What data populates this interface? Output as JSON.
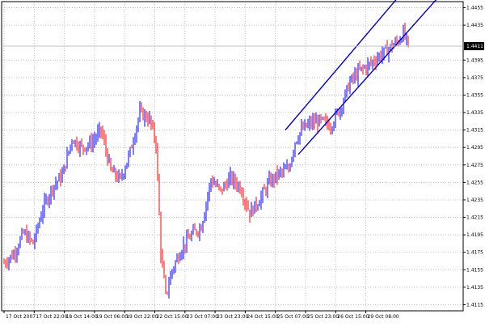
{
  "chart_data": {
    "type": "candlestick",
    "title": "",
    "xlabel": "",
    "ylabel": "",
    "grid": true,
    "x_tick_labels": [
      "17 Oct 2007",
      "17 Oct 22:00",
      "18 Oct 14:00",
      "19 Oct 06:00",
      "19 Oct 22:00",
      "22 Oct 15:00",
      "23 Oct 07:00",
      "23 Oct 23:00",
      "24 Oct 15:00",
      "25 Oct 07:00",
      "25 Oct 23:00",
      "26 Oct 15:00",
      "29 Oct 08:00"
    ],
    "y_ticks": [
      "1.4455",
      "1.4435",
      "1.4395",
      "1.4375",
      "1.4355",
      "1.4335",
      "1.4315",
      "1.4295",
      "1.4275",
      "1.4255",
      "1.4235",
      "1.4215",
      "1.4195",
      "1.4175",
      "1.4155",
      "1.4135",
      "1.4115"
    ],
    "ylim": [
      1.4108,
      1.4462
    ],
    "current_price": "1.4411",
    "colors": {
      "background": "#ffffff",
      "grid": "#c0c0c0",
      "bull_bar": "#0000ff",
      "bear_bar": "#ff0000",
      "channel_line": "#0000cd",
      "price_label_bg": "#000000",
      "axis": "#000000"
    },
    "channel": {
      "upper": {
        "start_bar": 174,
        "start_price": 1.4315,
        "end_bar": 247,
        "end_price": 1.4474
      },
      "lower": {
        "start_bar": 182,
        "start_price": 1.4287,
        "end_bar": 272,
        "end_price": 1.4474
      }
    },
    "close_anchors": [
      [
        0,
        1.4163
      ],
      [
        6,
        1.4173
      ],
      [
        12,
        1.4197
      ],
      [
        18,
        1.4185
      ],
      [
        24,
        1.4225
      ],
      [
        30,
        1.425
      ],
      [
        36,
        1.4263
      ],
      [
        42,
        1.4305
      ],
      [
        48,
        1.4295
      ],
      [
        54,
        1.43
      ],
      [
        60,
        1.4315
      ],
      [
        66,
        1.4268
      ],
      [
        72,
        1.4258
      ],
      [
        78,
        1.429
      ],
      [
        84,
        1.4335
      ],
      [
        90,
        1.4327
      ],
      [
        94,
        1.43
      ],
      [
        97,
        1.4175
      ],
      [
        100,
        1.4125
      ],
      [
        104,
        1.4155
      ],
      [
        110,
        1.418
      ],
      [
        116,
        1.4195
      ],
      [
        122,
        1.4205
      ],
      [
        128,
        1.4258
      ],
      [
        134,
        1.4245
      ],
      [
        140,
        1.426
      ],
      [
        146,
        1.425
      ],
      [
        152,
        1.422
      ],
      [
        158,
        1.4235
      ],
      [
        164,
        1.4255
      ],
      [
        170,
        1.4265
      ],
      [
        176,
        1.427
      ],
      [
        180,
        1.4302
      ],
      [
        184,
        1.4315
      ],
      [
        190,
        1.4323
      ],
      [
        196,
        1.4325
      ],
      [
        202,
        1.432
      ],
      [
        208,
        1.434
      ],
      [
        214,
        1.437
      ],
      [
        220,
        1.4383
      ],
      [
        226,
        1.439
      ],
      [
        232,
        1.44
      ],
      [
        238,
        1.4408
      ],
      [
        244,
        1.4417
      ],
      [
        247,
        1.4426
      ],
      [
        250,
        1.4411
      ]
    ]
  }
}
